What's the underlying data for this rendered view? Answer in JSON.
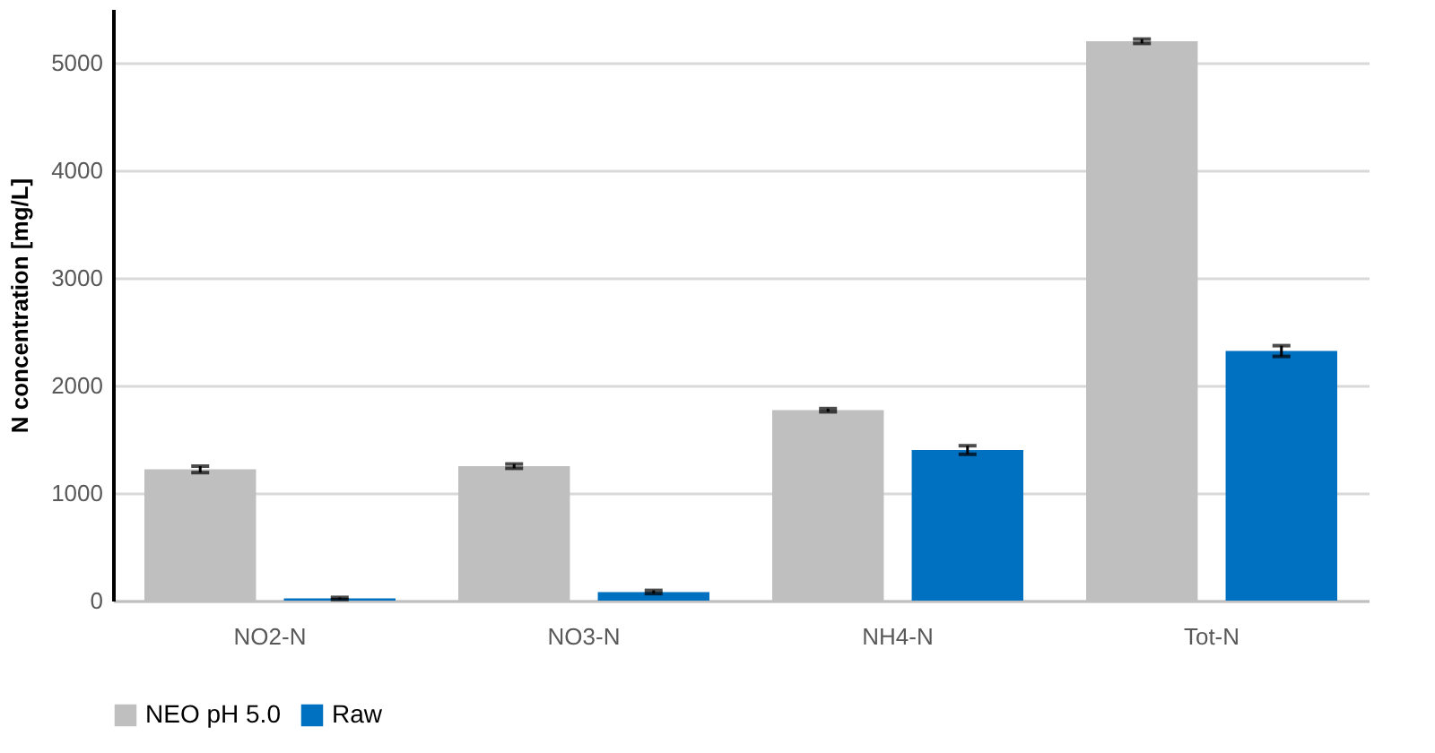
{
  "chart_data": {
    "type": "bar",
    "ylabel": "N concentration  [mg/L]",
    "categories": [
      "NO2-N",
      "NO3-N",
      "NH4-N",
      "Tot-N"
    ],
    "series": [
      {
        "name": "NEO pH 5.0",
        "color": "#bfbfbf",
        "values": [
          1220,
          1250,
          1770,
          5200
        ],
        "errors": [
          30,
          20,
          15,
          20
        ]
      },
      {
        "name": "Raw",
        "color": "#0070c0",
        "values": [
          20,
          80,
          1400,
          2320
        ],
        "errors": [
          10,
          15,
          40,
          50
        ]
      }
    ],
    "ylim": [
      0,
      5500
    ],
    "yticks": [
      0,
      1000,
      2000,
      3000,
      4000,
      5000
    ],
    "grid": "y",
    "legend": "bottom"
  }
}
